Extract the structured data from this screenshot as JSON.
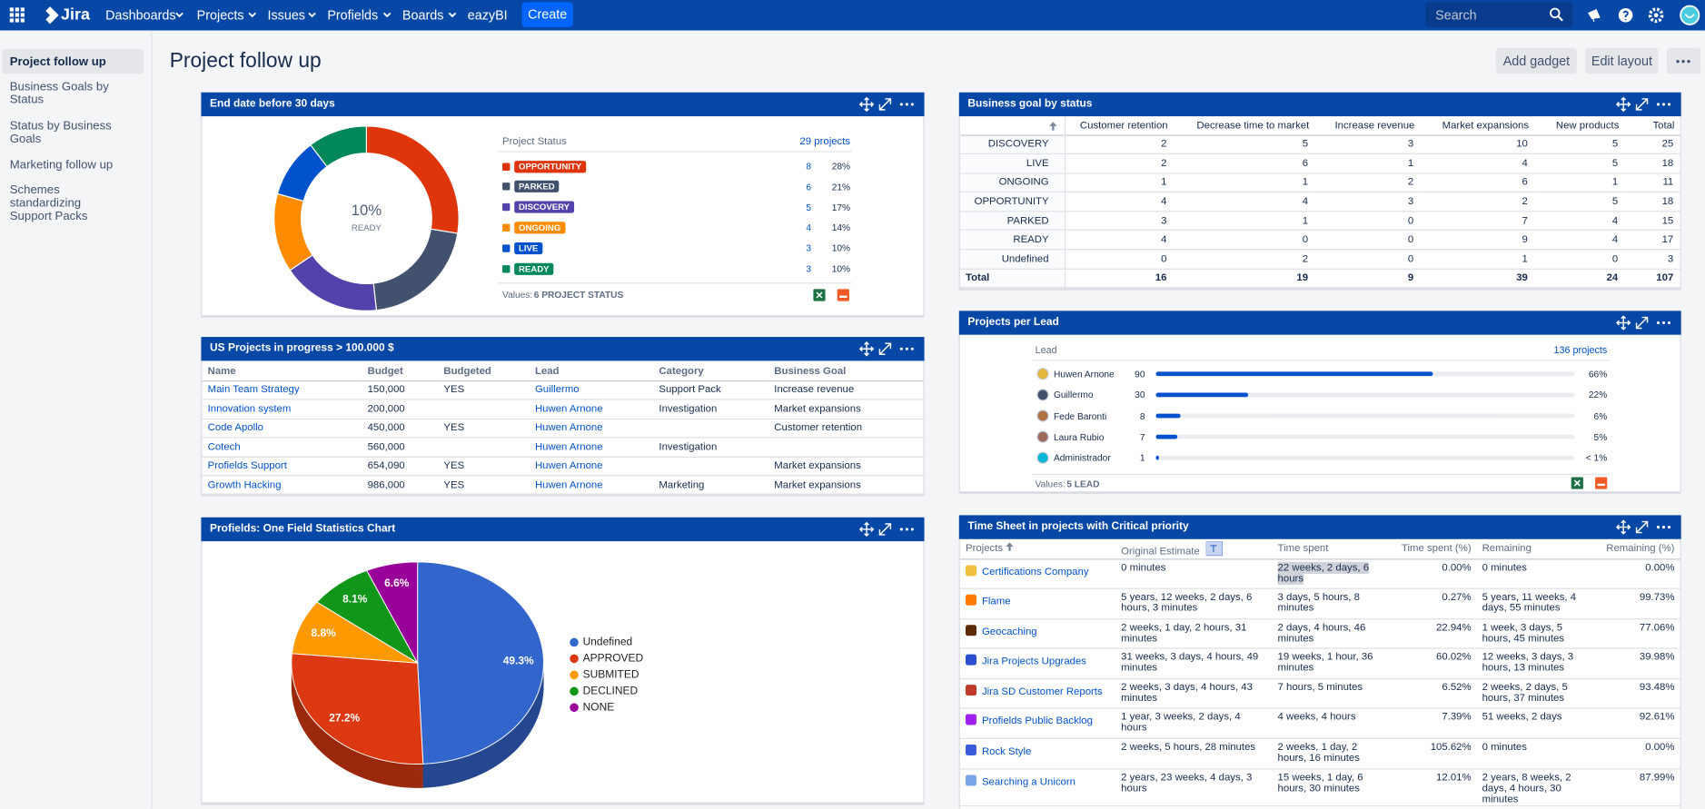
{
  "nav": {
    "logo": "Jira",
    "items": [
      "Dashboards",
      "Projects",
      "Issues",
      "Profields",
      "Boards",
      "eazyBI"
    ],
    "create": "Create",
    "search": "Search"
  },
  "sidebar": {
    "items": [
      "Project follow up",
      "Business Goals by Status",
      "Status by Business Goals",
      "Marketing follow up",
      "Schemes standardizing",
      "Support Packs"
    ]
  },
  "header": {
    "title": "Project follow up",
    "add_gadget": "Add gadget",
    "edit_layout": "Edit layout"
  },
  "status_gadget": {
    "title": "End date before 30 days",
    "center_value": "10%",
    "center_label": "READY",
    "column_label": "Project Status",
    "total": "29 projects",
    "rows": [
      {
        "status": "OPPORTUNITY",
        "color": "#de350b",
        "count": 8,
        "percent": "28%"
      },
      {
        "status": "PARKED",
        "color": "#42526e",
        "count": 6,
        "percent": "21%"
      },
      {
        "status": "DISCOVERY",
        "color": "#5243aa",
        "count": 5,
        "percent": "17%"
      },
      {
        "status": "ONGOING",
        "color": "#ff8b00",
        "count": 4,
        "percent": "14%"
      },
      {
        "status": "LIVE",
        "color": "#0052cc",
        "count": 3,
        "percent": "10%"
      },
      {
        "status": "READY",
        "color": "#00875a",
        "count": 3,
        "percent": "10%"
      }
    ],
    "values_label": "Values:",
    "values_text": "6 PROJECT STATUS"
  },
  "budget_gadget": {
    "title": "US Projects in progress > 100.000 $",
    "columns": [
      "Name",
      "Budget",
      "Budgeted",
      "Lead",
      "Category",
      "Business Goal"
    ],
    "rows": [
      [
        "Main Team Strategy",
        "150,000",
        "YES",
        "Guillermo",
        "Support Pack",
        "Increase revenue"
      ],
      [
        "Innovation system",
        "200,000",
        null,
        "Huwen Arnone",
        "Investigation",
        "Market expansions"
      ],
      [
        "Code Apollo",
        "450,000",
        "YES",
        "Huwen Arnone",
        null,
        "Customer retention"
      ],
      [
        "Cotech",
        "560,000",
        null,
        "Huwen Arnone",
        "Investigation",
        null
      ],
      [
        "Profields Support",
        "654,090",
        "YES",
        "Huwen Arnone",
        null,
        "Market expansions"
      ],
      [
        "Growth Hacking",
        "986,000",
        "YES",
        "Huwen Arnone",
        "Marketing",
        "Market expansions"
      ]
    ]
  },
  "pie_gadget": {
    "title": "Profields: One Field Statistics Chart",
    "chart_data": {
      "type": "pie",
      "categories": [
        "Undefined",
        "APPROVED",
        "SUBMITED",
        "DECLINED",
        "NONE"
      ],
      "values": [
        49.3,
        27.2,
        8.8,
        8.1,
        6.6
      ],
      "value_labels": [
        "49.3%",
        "27.2%",
        "8.8%",
        "8.1%",
        "6.6%"
      ],
      "colors": [
        "#3366cc",
        "#dc3912",
        "#ff9900",
        "#109618",
        "#990099"
      ]
    }
  },
  "goal_gadget": {
    "title": "Business goal by status",
    "columns": [
      "Customer retention",
      "Decrease time to market",
      "Increase revenue",
      "Market expansions",
      "New products",
      "Total"
    ],
    "rows": [
      {
        "label": "DISCOVERY",
        "values": [
          2,
          5,
          3,
          10,
          5,
          25
        ]
      },
      {
        "label": "LIVE",
        "values": [
          2,
          6,
          1,
          4,
          5,
          18
        ]
      },
      {
        "label": "ONGOING",
        "values": [
          1,
          1,
          2,
          6,
          1,
          11
        ]
      },
      {
        "label": "OPPORTUNITY",
        "values": [
          4,
          4,
          3,
          2,
          5,
          18
        ]
      },
      {
        "label": "PARKED",
        "values": [
          3,
          1,
          0,
          7,
          4,
          15
        ]
      },
      {
        "label": "READY",
        "values": [
          4,
          0,
          0,
          9,
          4,
          17
        ]
      },
      {
        "label": "Undefined",
        "values": [
          0,
          2,
          0,
          1,
          0,
          3
        ]
      }
    ],
    "total": {
      "label": "Total",
      "values": [
        16,
        19,
        9,
        39,
        24,
        107
      ]
    }
  },
  "lead_gadget": {
    "title": "Projects per Lead",
    "column_label": "Lead",
    "total": "136 projects",
    "rows": [
      {
        "name": "Huwen Arnone",
        "count": 90,
        "percent": "66%"
      },
      {
        "name": "Guillermo",
        "count": 30,
        "percent": "22%"
      },
      {
        "name": "Fede Baronti",
        "count": 8,
        "percent": "6%"
      },
      {
        "name": "Laura Rubio",
        "count": 7,
        "percent": "5%"
      },
      {
        "name": "Administrador",
        "count": 1,
        "percent": "< 1%"
      }
    ],
    "values_label": "Values:",
    "values_text": "5 LEAD"
  },
  "timesheet_gadget": {
    "title": "Time Sheet in projects with Critical priority",
    "columns": [
      "Projects",
      "Original Estimate",
      "Time spent",
      "Time spent (%)",
      "Remaining",
      "Remaining (%)"
    ],
    "rows": [
      [
        "Certifications Company",
        "0 minutes",
        "22 weeks, 2 days, 6 hours",
        "0.00%",
        "0 minutes",
        "0.00%"
      ],
      [
        "Flame",
        "5 years, 12 weeks, 2 days, 6 hours, 3 minutes",
        "3 days, 5 hours, 8 minutes",
        "0.27%",
        "5 years, 11 weeks, 4 days, 55 minutes",
        "99.73%"
      ],
      [
        "Geocaching",
        "2 weeks, 1 day, 2 hours, 31 minutes",
        "2 days, 4 hours, 46 minutes",
        "22.94%",
        "1 week, 3 days, 5 hours, 45 minutes",
        "77.06%"
      ],
      [
        "Jira Projects Upgrades",
        "31 weeks, 3 days, 4 hours, 49 minutes",
        "19 weeks, 1 hour, 36 minutes",
        "60.02%",
        "12 weeks, 3 days, 3 hours, 13 minutes",
        "39.98%"
      ],
      [
        "Jira SD Customer Reports",
        "2 weeks, 3 days, 4 hours, 43 minutes",
        "7 hours, 5 minutes",
        "6.52%",
        "2 weeks, 2 days, 5 hours, 37 minutes",
        "93.48%"
      ],
      [
        "Profields Public Backlog",
        "1 year, 3 weeks, 2 days, 4 hours",
        "4 weeks, 4 hours",
        "7.39%",
        "51 weeks, 2 days",
        "92.61%"
      ],
      [
        "Rock Style",
        "2 weeks, 5 hours, 28 minutes",
        "2 weeks, 1 day, 2 hours, 16 minutes",
        "105.62%",
        "0 minutes",
        "0.00%"
      ],
      [
        "Searching a Unicorn",
        "2 years, 23 weeks, 4 days, 3 hours",
        "15 weeks, 1 day, 6 hours, 30 minutes",
        "12.01%",
        "2 years, 8 weeks, 2 days, 4 hours, 30 minutes",
        "87.99%"
      ]
    ]
  }
}
